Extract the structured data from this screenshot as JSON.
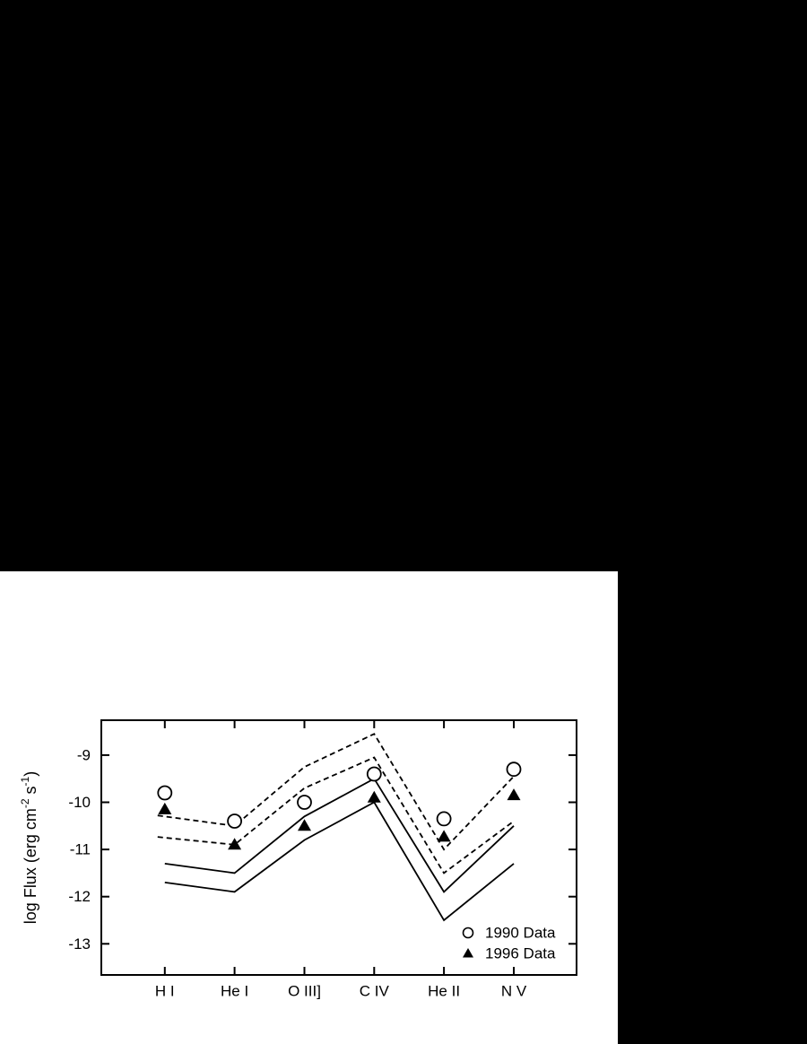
{
  "colors": {
    "background": "#000000",
    "paper": "#ffffff",
    "ink": "#000000"
  },
  "chart_data": {
    "type": "line",
    "title": "",
    "xlabel": "",
    "ylabel": "log Flux (erg cm-2 s-1)",
    "ylabel_parts": [
      {
        "text": "log Flux (erg cm",
        "sup": false
      },
      {
        "text": "-2",
        "sup": true
      },
      {
        "text": " s",
        "sup": false
      },
      {
        "text": "-1",
        "sup": true
      },
      {
        "text": ")",
        "sup": false
      }
    ],
    "categories": [
      "H I",
      "He I",
      "O III]",
      "C IV",
      "He II",
      "N V"
    ],
    "yticks": [
      -9,
      -10,
      -11,
      -12,
      -13
    ],
    "ytick_labels": [
      "-9",
      "-10",
      "-11",
      "-12",
      "-13"
    ],
    "ylim": [
      -13.66,
      -8.26
    ],
    "grid": false,
    "series": [
      {
        "name": "model-upper-dashed",
        "role": "model",
        "line_style": "dashed",
        "values": [
          -10.3,
          -10.5,
          -9.25,
          -8.55,
          -11.0,
          -9.45
        ]
      },
      {
        "name": "model-lower-dashed",
        "role": "model",
        "line_style": "dashed",
        "values": [
          -10.75,
          -10.9,
          -9.7,
          -9.05,
          -11.5,
          -10.4
        ]
      },
      {
        "name": "model-upper-solid",
        "role": "model",
        "line_style": "solid",
        "values": [
          -11.3,
          -11.5,
          -10.3,
          -9.5,
          -11.9,
          -10.5
        ]
      },
      {
        "name": "model-lower-solid",
        "role": "model",
        "line_style": "solid",
        "values": [
          -11.7,
          -11.9,
          -10.8,
          -10.0,
          -12.5,
          -11.3
        ]
      },
      {
        "name": "1990 Data",
        "role": "observations",
        "marker": "circle",
        "values": [
          -9.8,
          -10.4,
          -10.0,
          -9.4,
          -10.35,
          -9.3
        ]
      },
      {
        "name": "1996 Data",
        "role": "observations",
        "marker": "triangle",
        "values": [
          -10.15,
          -10.9,
          -10.5,
          -9.9,
          -10.73,
          -9.85
        ]
      }
    ],
    "legend": {
      "position": "inside-bottom-right",
      "entries": [
        {
          "marker": "circle",
          "label": "1990 Data"
        },
        {
          "marker": "triangle",
          "label": "1996 Data"
        }
      ]
    }
  }
}
